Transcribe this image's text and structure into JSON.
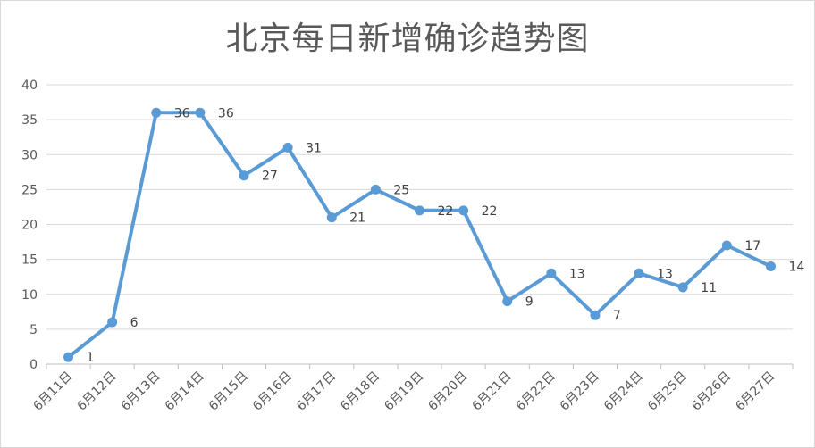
{
  "chart_data": {
    "type": "line",
    "title": "北京每日新增确诊趋势图",
    "xlabel": "",
    "ylabel": "",
    "ylim": [
      0,
      40
    ],
    "yticks": [
      0,
      5,
      10,
      15,
      20,
      25,
      30,
      35,
      40
    ],
    "grid": true,
    "legend": "none",
    "categories": [
      "6月11日",
      "6月12日",
      "6月13日",
      "6月14日",
      "6月15日",
      "6月16日",
      "6月17日",
      "6月18日",
      "6月19日",
      "6月20日",
      "6月21日",
      "6月22日",
      "6月23日",
      "6月24日",
      "6月25日",
      "6月26日",
      "6月27日"
    ],
    "series": [
      {
        "values": [
          1,
          6,
          36,
          36,
          27,
          31,
          21,
          25,
          22,
          22,
          9,
          13,
          7,
          13,
          11,
          17,
          14
        ],
        "color": "#5b9bd5"
      }
    ]
  }
}
